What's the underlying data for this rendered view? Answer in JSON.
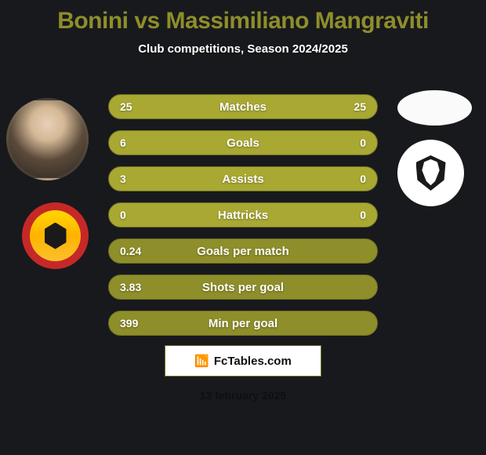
{
  "colors": {
    "background": "#18191d",
    "title": "#8e8e2a",
    "subtitle": "#ffffff",
    "row_text": "#ffffff",
    "row_border": "#6f6f22",
    "branding_border": "#6f6f22",
    "branding_text": "#0f0f10",
    "branding_bg": "#ffffff",
    "date_text": "#0f0f10"
  },
  "title": "Bonini vs Massimiliano Mangraviti",
  "subtitle": "Club competitions, Season 2024/2025",
  "stats": [
    {
      "p1": "25",
      "label": "Matches",
      "p2": "25",
      "bg": "#a8a833"
    },
    {
      "p1": "6",
      "label": "Goals",
      "p2": "0",
      "bg": "#a8a833"
    },
    {
      "p1": "3",
      "label": "Assists",
      "p2": "0",
      "bg": "#a8a833"
    },
    {
      "p1": "0",
      "label": "Hattricks",
      "p2": "0",
      "bg": "#a8a833"
    },
    {
      "p1": "0.24",
      "label": "Goals per match",
      "p2": "",
      "bg": "#8e8e2a"
    },
    {
      "p1": "3.83",
      "label": "Shots per goal",
      "p2": "",
      "bg": "#8e8e2a"
    },
    {
      "p1": "399",
      "label": "Min per goal",
      "p2": "",
      "bg": "#8e8e2a"
    }
  ],
  "branding": {
    "icon_glyph": "📶",
    "text": "FcTables.com"
  },
  "date": "13 february 2025"
}
